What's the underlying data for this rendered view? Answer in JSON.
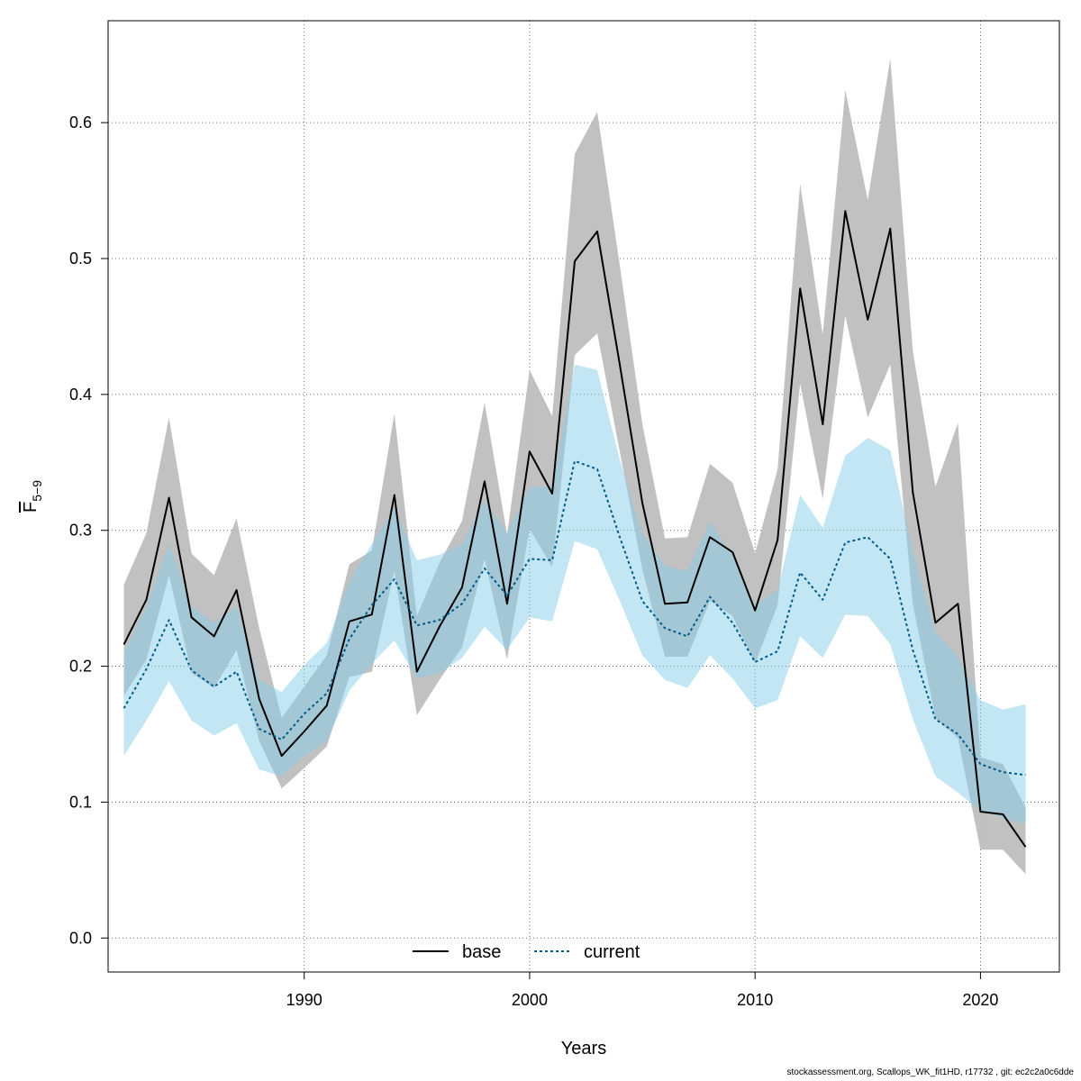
{
  "chart_data": {
    "type": "line",
    "xlabel": "Years",
    "ylabel": "F",
    "ylabel_subscript": "5−9",
    "xlim": [
      1981.3,
      2023.5
    ],
    "ylim": [
      -0.025,
      0.675
    ],
    "x_ticks": [
      1990,
      2000,
      2010,
      2020
    ],
    "y_ticks": [
      0.0,
      0.1,
      0.2,
      0.3,
      0.4,
      0.5,
      0.6
    ],
    "y_tick_labels": [
      "0.0",
      "0.1",
      "0.2",
      "0.3",
      "0.4",
      "0.5",
      "0.6"
    ],
    "grid": true,
    "legend_position": "bottom-center",
    "x": [
      1982,
      1983,
      1984,
      1985,
      1986,
      1987,
      1988,
      1989,
      1990,
      1991,
      1992,
      1993,
      1994,
      1995,
      1996,
      1997,
      1998,
      1999,
      2000,
      2001,
      2002,
      2003,
      2004,
      2005,
      2006,
      2007,
      2008,
      2009,
      2010,
      2011,
      2012,
      2013,
      2014,
      2015,
      2016,
      2017,
      2018,
      2019,
      2020,
      2021,
      2022
    ],
    "series": [
      {
        "name": "base",
        "color": "#000000",
        "line": "solid",
        "band_color": "#bebebe",
        "values": [
          0.216,
          0.249,
          0.324,
          0.236,
          0.222,
          0.256,
          0.176,
          0.134,
          0.152,
          0.171,
          0.233,
          0.238,
          0.326,
          0.196,
          0.229,
          0.258,
          0.336,
          0.246,
          0.358,
          0.327,
          0.498,
          0.52,
          0.422,
          0.32,
          0.246,
          0.247,
          0.295,
          0.284,
          0.241,
          0.293,
          0.478,
          0.378,
          0.535,
          0.455,
          0.522,
          0.328,
          0.232,
          0.246,
          0.093,
          0.091,
          0.067
        ],
        "lower": [
          0.178,
          0.205,
          0.267,
          0.195,
          0.184,
          0.212,
          0.145,
          0.11,
          0.125,
          0.141,
          0.192,
          0.196,
          0.27,
          0.164,
          0.19,
          0.214,
          0.279,
          0.205,
          0.301,
          0.273,
          0.429,
          0.445,
          0.358,
          0.271,
          0.207,
          0.207,
          0.248,
          0.237,
          0.202,
          0.245,
          0.408,
          0.323,
          0.458,
          0.383,
          0.422,
          0.246,
          0.162,
          0.147,
          0.065,
          0.065,
          0.047
        ],
        "upper": [
          0.26,
          0.298,
          0.383,
          0.283,
          0.267,
          0.309,
          0.228,
          0.162,
          0.185,
          0.208,
          0.275,
          0.285,
          0.386,
          0.237,
          0.276,
          0.307,
          0.394,
          0.297,
          0.418,
          0.384,
          0.577,
          0.608,
          0.495,
          0.378,
          0.294,
          0.295,
          0.349,
          0.335,
          0.283,
          0.345,
          0.555,
          0.444,
          0.624,
          0.543,
          0.647,
          0.432,
          0.332,
          0.379,
          0.133,
          0.128,
          0.096
        ]
      },
      {
        "name": "current",
        "color": "#005b86",
        "line": "dotted",
        "band_color": "#87ceeb",
        "values": [
          0.169,
          0.198,
          0.234,
          0.197,
          0.185,
          0.196,
          0.154,
          0.146,
          0.165,
          0.18,
          0.22,
          0.245,
          0.264,
          0.23,
          0.234,
          0.246,
          0.272,
          0.252,
          0.279,
          0.278,
          0.351,
          0.345,
          0.295,
          0.248,
          0.228,
          0.222,
          0.251,
          0.232,
          0.203,
          0.211,
          0.269,
          0.249,
          0.291,
          0.295,
          0.279,
          0.212,
          0.161,
          0.15,
          0.128,
          0.122,
          0.12
        ],
        "lower": [
          0.134,
          0.16,
          0.189,
          0.16,
          0.149,
          0.158,
          0.124,
          0.119,
          0.134,
          0.145,
          0.182,
          0.202,
          0.219,
          0.191,
          0.195,
          0.206,
          0.229,
          0.212,
          0.236,
          0.233,
          0.292,
          0.286,
          0.248,
          0.208,
          0.19,
          0.184,
          0.208,
          0.191,
          0.169,
          0.175,
          0.222,
          0.206,
          0.238,
          0.237,
          0.216,
          0.161,
          0.119,
          0.107,
          0.094,
          0.088,
          0.084
        ],
        "upper": [
          0.21,
          0.244,
          0.29,
          0.244,
          0.232,
          0.244,
          0.19,
          0.181,
          0.201,
          0.217,
          0.262,
          0.29,
          0.317,
          0.278,
          0.282,
          0.29,
          0.322,
          0.298,
          0.332,
          0.332,
          0.422,
          0.418,
          0.352,
          0.297,
          0.274,
          0.27,
          0.306,
          0.282,
          0.245,
          0.256,
          0.326,
          0.302,
          0.355,
          0.368,
          0.359,
          0.285,
          0.225,
          0.207,
          0.175,
          0.168,
          0.172
        ]
      }
    ]
  },
  "footer": "stockassessment.org, Scallops_WK_fit1HD, r17732 , git: ec2c2a0c6dde"
}
